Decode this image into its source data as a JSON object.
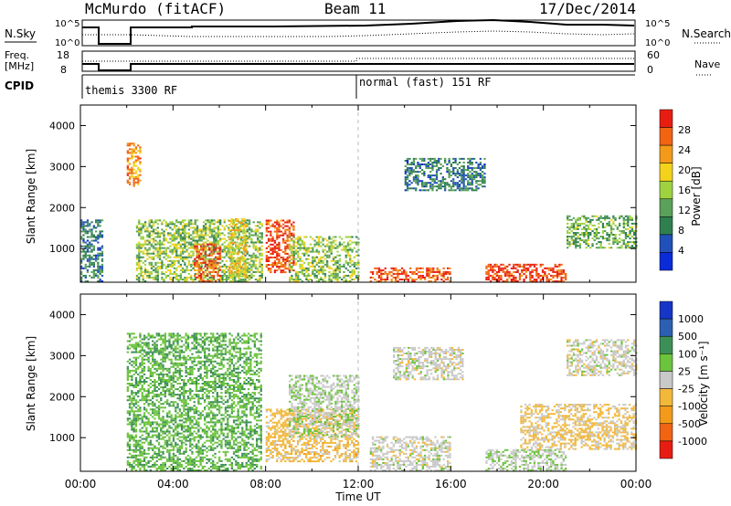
{
  "header": {
    "station": "McMurdo (fitACF)",
    "beam": "Beam 11",
    "date": "17/Dec/2014"
  },
  "side_labels": {
    "nsky": "N.Sky",
    "nsky_ticks": [
      "10^5",
      "10^0"
    ],
    "nsearch": "N.Search",
    "nsearch_ticks": [
      "10^5",
      "10^0"
    ],
    "freq": "Freq.",
    "freq_unit": "[MHz]",
    "freq_ticks": [
      "18",
      "8"
    ],
    "nave": "Nave",
    "nave_ticks": [
      "60",
      "0"
    ],
    "cpid": "CPID"
  },
  "cpid_modes": [
    {
      "label": "themis 3300 RF",
      "start_hour": 0
    },
    {
      "label": "normal (fast) 151 RF",
      "start_hour": 12
    }
  ],
  "colors": {
    "power_scale": [
      "#0a2bd8",
      "#2150b8",
      "#2f7f4f",
      "#5aa15a",
      "#9fd241",
      "#f2d21b",
      "#f39a1a",
      "#f06414",
      "#e81d12"
    ],
    "velocity_scale": [
      "#e81d12",
      "#f06414",
      "#f39a1a",
      "#f2b83a",
      "#c9c9c9",
      "#6cc33c",
      "#3d8f58",
      "#2c5fb2",
      "#1736c8"
    ]
  },
  "chart_data": [
    {
      "type": "heatmap",
      "title": "Power",
      "xlabel": "Time UT",
      "ylabel": "Slant Range [km]",
      "x_ticks": [
        "00:00",
        "04:00",
        "08:00",
        "12:00",
        "16:00",
        "20:00",
        "00:00"
      ],
      "y_ticks": [
        "1000",
        "2000",
        "3000",
        "4000"
      ],
      "ylim": [
        180,
        4500
      ],
      "colorbar_label": "Power [dB]",
      "colorbar_ticks": [
        "4",
        "8",
        "12",
        "16",
        "20",
        "24",
        "28"
      ],
      "colorbar_range": [
        0,
        30
      ],
      "echo_regions": [
        {
          "t0": 0.0,
          "t1": 0.9,
          "r0": 180,
          "r1": 1700,
          "value": 8
        },
        {
          "t0": 2.0,
          "t1": 2.6,
          "r0": 2500,
          "r1": 3550,
          "value": 22
        },
        {
          "t0": 2.4,
          "t1": 7.8,
          "r0": 180,
          "r1": 1700,
          "value": 14
        },
        {
          "t0": 4.9,
          "t1": 6.0,
          "r0": 180,
          "r1": 1100,
          "value": 26
        },
        {
          "t0": 6.4,
          "t1": 7.2,
          "r0": 300,
          "r1": 1700,
          "value": 18
        },
        {
          "t0": 8.0,
          "t1": 9.2,
          "r0": 400,
          "r1": 1700,
          "value": 27
        },
        {
          "t0": 9.0,
          "t1": 12.0,
          "r0": 180,
          "r1": 1300,
          "value": 14
        },
        {
          "t0": 12.5,
          "t1": 16.0,
          "r0": 180,
          "r1": 500,
          "value": 26
        },
        {
          "t0": 17.5,
          "t1": 21.0,
          "r0": 180,
          "r1": 600,
          "value": 27
        },
        {
          "t0": 21.0,
          "t1": 24.0,
          "r0": 1000,
          "r1": 1800,
          "value": 12
        },
        {
          "t0": 14.0,
          "t1": 17.5,
          "r0": 2400,
          "r1": 3200,
          "value": 8
        }
      ]
    },
    {
      "type": "heatmap",
      "title": "Velocity",
      "xlabel": "Time UT",
      "ylabel": "Slant Range [km]",
      "x_ticks": [
        "00:00",
        "04:00",
        "08:00",
        "12:00",
        "16:00",
        "20:00",
        "00:00"
      ],
      "y_ticks": [
        "1000",
        "2000",
        "3000",
        "4000"
      ],
      "ylim": [
        180,
        4500
      ],
      "colorbar_label": "Velocity [m s⁻¹]",
      "colorbar_ticks": [
        "1000",
        "500",
        "100",
        "25",
        "-25",
        "-100",
        "-500",
        "-1000"
      ],
      "colorbar_range": [
        -1000,
        1000
      ],
      "echo_regions": [
        {
          "t0": 2.0,
          "t1": 7.8,
          "r0": 180,
          "r1": 3550,
          "value": 300
        },
        {
          "t0": 8.0,
          "t1": 12.0,
          "r0": 400,
          "r1": 1700,
          "value": -200
        },
        {
          "t0": 9.0,
          "t1": 12.0,
          "r0": 1000,
          "r1": 2500,
          "value": 80
        },
        {
          "t0": 12.5,
          "t1": 16.0,
          "r0": 180,
          "r1": 1000,
          "value": 0
        },
        {
          "t0": 13.5,
          "t1": 16.5,
          "r0": 2400,
          "r1": 3200,
          "value": 0
        },
        {
          "t0": 17.5,
          "t1": 21.0,
          "r0": 180,
          "r1": 700,
          "value": 80
        },
        {
          "t0": 19.0,
          "t1": 24.0,
          "r0": 700,
          "r1": 1800,
          "value": -150
        },
        {
          "t0": 21.0,
          "t1": 24.0,
          "r0": 2500,
          "r1": 3400,
          "value": 0
        }
      ]
    }
  ]
}
